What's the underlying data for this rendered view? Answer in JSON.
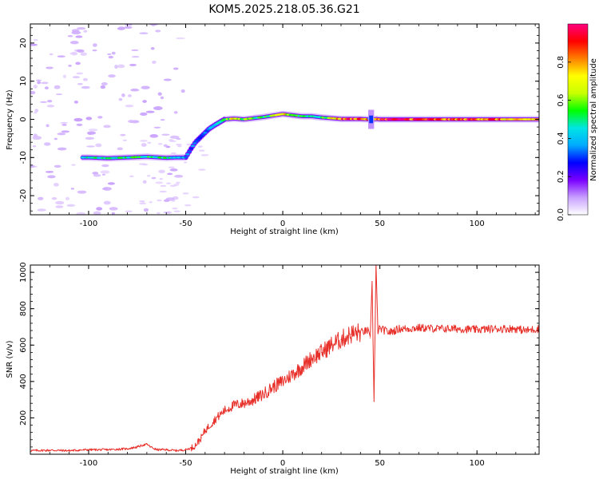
{
  "title": "KOM5.2025.218.05.36.G21",
  "chart_data": [
    {
      "type": "heatmap",
      "xlabel": "Height of straight line (km)",
      "ylabel": "Frequency (Hz)",
      "xlim": [
        -130,
        132
      ],
      "ylim": [
        -25,
        25
      ],
      "xticks": [
        -100,
        -50,
        0,
        50,
        100
      ],
      "yticks": [
        -20,
        -10,
        0,
        10,
        20
      ],
      "grid": false,
      "colorbar": {
        "label": "Normalized spectral amplitude",
        "range": [
          0,
          1
        ],
        "ticks": [
          0.0,
          0.2,
          0.4,
          0.6,
          0.8
        ],
        "colormap": [
          "#ffffff",
          "#c8a0ff",
          "#7a00ff",
          "#0000ff",
          "#00aaff",
          "#00e5e5",
          "#00ff00",
          "#c8ff00",
          "#ffff00",
          "#ff8000",
          "#ff0000",
          "#ff0080"
        ]
      },
      "ridge": {
        "x": [
          -100,
          -90,
          -80,
          -70,
          -60,
          -55,
          -50,
          -47,
          -45,
          -42,
          -40,
          -38,
          -35,
          -30,
          -25,
          -20,
          -10,
          -5,
          0,
          5,
          10,
          15,
          20,
          25,
          30,
          35,
          40,
          44,
          45,
          47,
          48,
          50,
          60,
          70,
          80,
          90,
          100,
          110,
          120,
          132
        ],
        "y": [
          -10,
          -10.2,
          -10,
          -9.8,
          -10.1,
          -10,
          -10,
          -7.5,
          -6,
          -4.5,
          -3.5,
          -2.5,
          -1.5,
          0,
          0.2,
          0,
          0.6,
          1.0,
          1.4,
          1.1,
          0.8,
          0.8,
          0.5,
          0.3,
          0.1,
          0.1,
          0.1,
          0.0,
          0.2,
          0.0,
          0.1,
          0.0,
          0.0,
          0.0,
          0.0,
          0.0,
          0.0,
          0.0,
          0.0,
          0.0
        ],
        "amplitude": [
          0.45,
          0.5,
          0.5,
          0.55,
          0.5,
          0.45,
          0.4,
          0.35,
          0.3,
          0.3,
          0.35,
          0.4,
          0.45,
          0.55,
          0.7,
          0.6,
          0.5,
          0.55,
          0.75,
          0.6,
          0.55,
          0.5,
          0.5,
          0.65,
          0.85,
          0.9,
          0.9,
          0.75,
          0.3,
          0.6,
          0.8,
          0.95,
          0.95,
          0.9,
          0.85,
          0.85,
          0.9,
          0.85,
          0.7,
          0.8
        ]
      }
    },
    {
      "type": "line",
      "xlabel": "Height of straight line (km)",
      "ylabel": "SNR (v/v)",
      "xlim": [
        -130,
        132
      ],
      "ylim": [
        0,
        1040
      ],
      "xticks": [
        -100,
        -50,
        0,
        50,
        100
      ],
      "yticks": [
        200,
        400,
        600,
        800,
        1000
      ],
      "grid": false,
      "series": [
        {
          "color": "#e8302a",
          "x": [
            -130,
            -120,
            -110,
            -100,
            -90,
            -80,
            -75,
            -72,
            -70,
            -68,
            -65,
            -60,
            -55,
            -50,
            -47,
            -45,
            -42,
            -40,
            -35,
            -30,
            -25,
            -20,
            -15,
            -10,
            -5,
            0,
            5,
            10,
            15,
            20,
            25,
            30,
            35,
            40,
            44,
            45,
            46,
            47,
            48,
            49,
            50,
            55,
            60,
            65,
            70,
            80,
            90,
            100,
            110,
            120,
            125,
            132
          ],
          "y": [
            20,
            22,
            20,
            25,
            25,
            30,
            40,
            50,
            55,
            40,
            25,
            25,
            20,
            25,
            35,
            50,
            90,
            130,
            190,
            240,
            270,
            280,
            300,
            330,
            370,
            400,
            440,
            480,
            530,
            560,
            600,
            630,
            660,
            670,
            680,
            640,
            950,
            290,
            1040,
            680,
            690,
            670,
            690,
            690,
            695,
            690,
            690,
            685,
            690,
            690,
            680,
            690
          ]
        }
      ]
    }
  ]
}
